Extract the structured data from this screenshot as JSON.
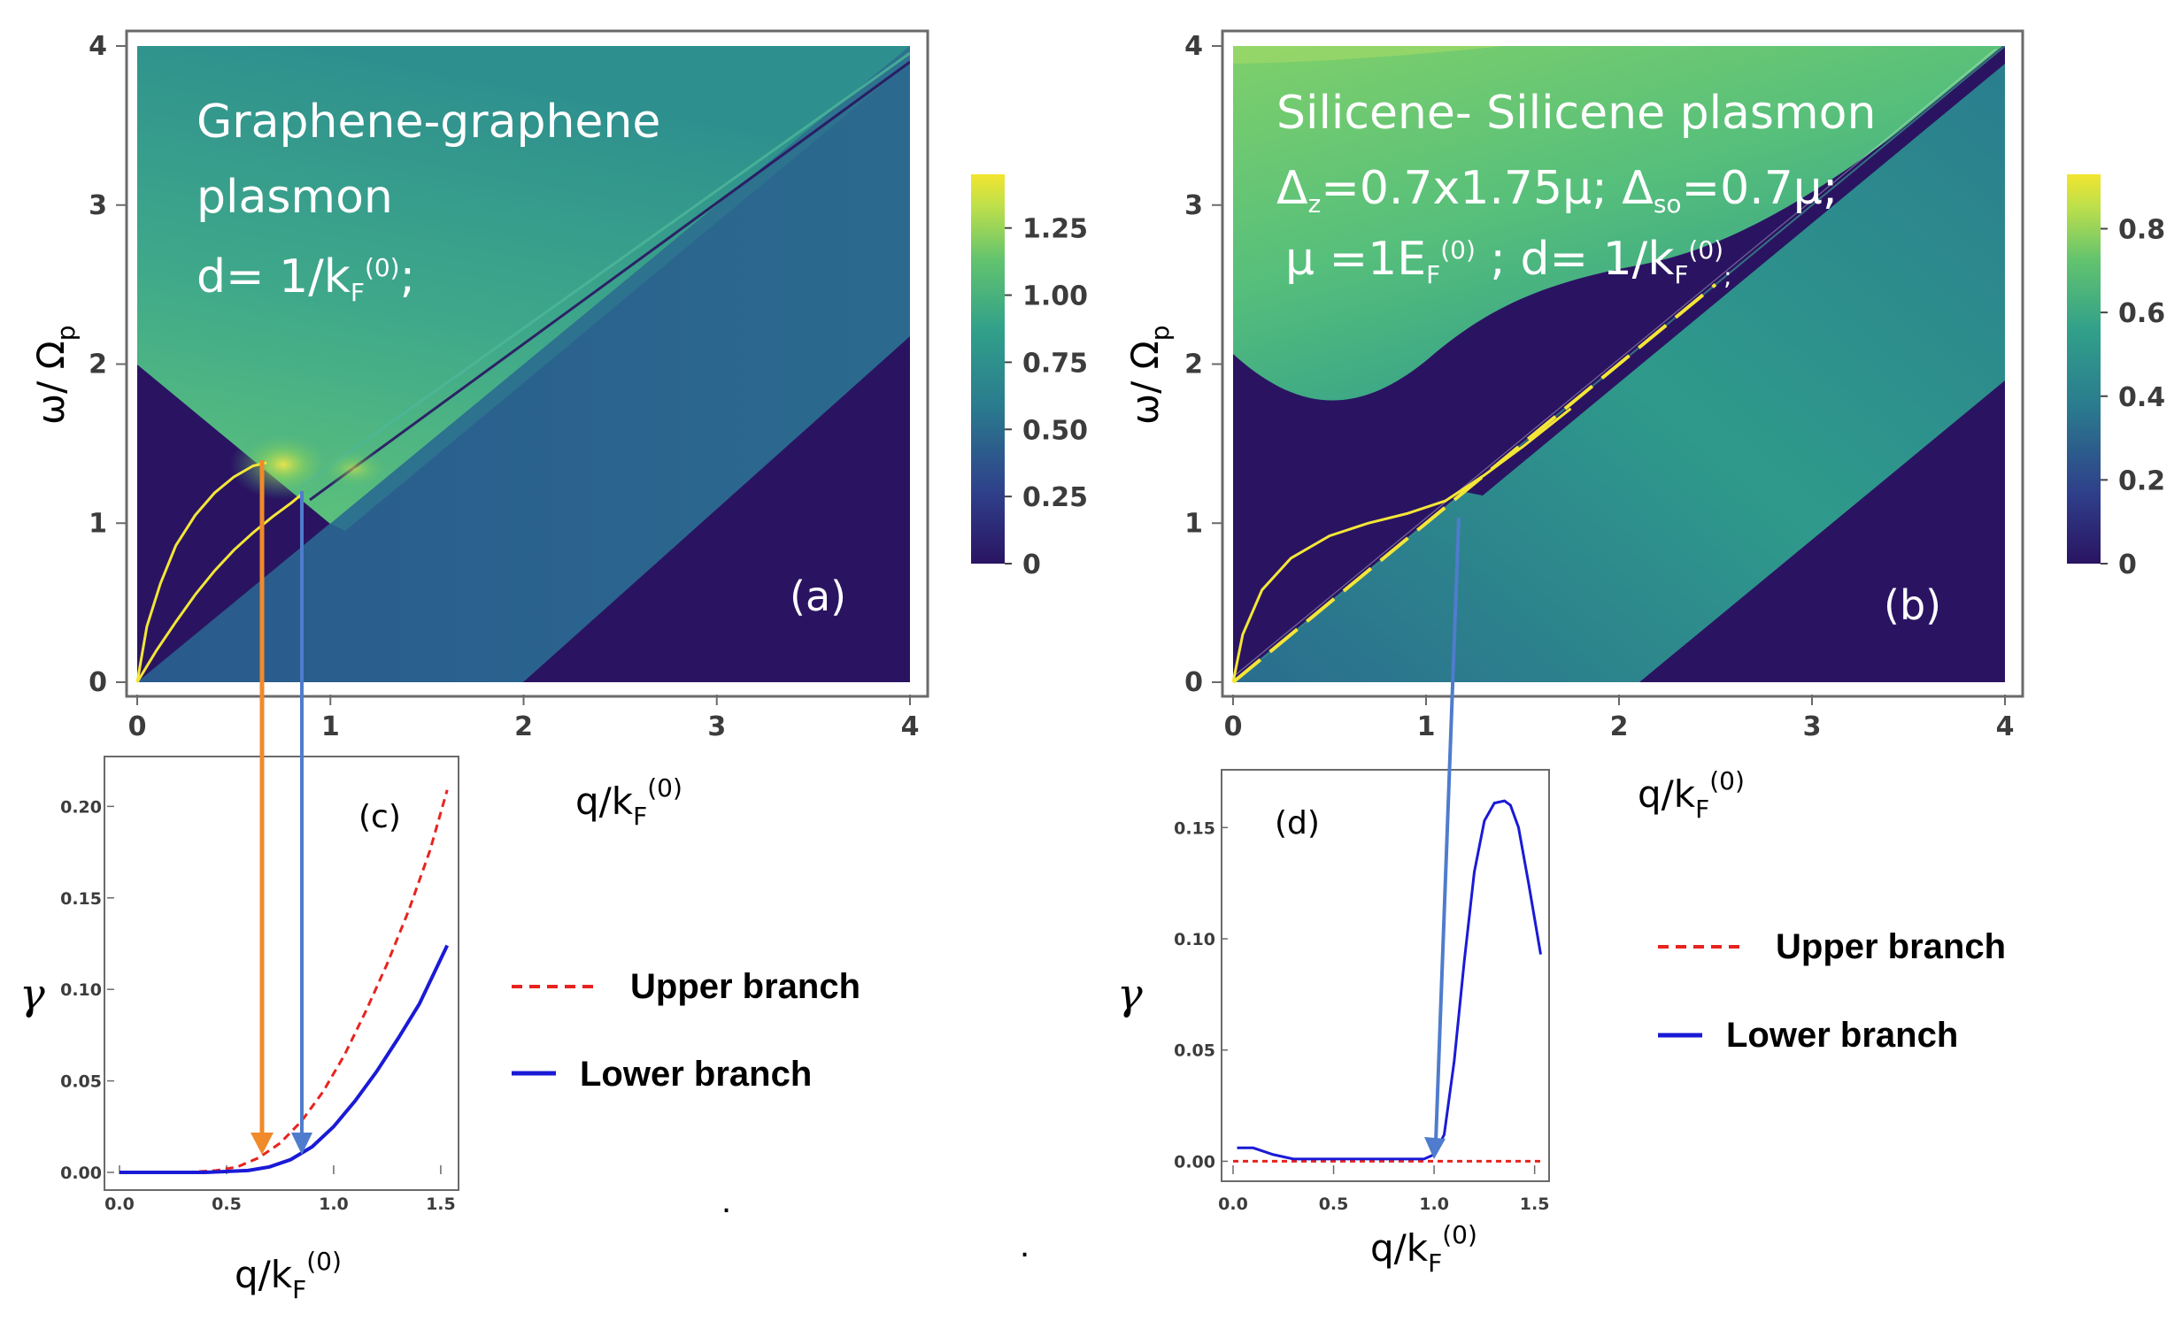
{
  "colors": {
    "panel_bg": "#3b1f6b",
    "dark_region": "#2a1462",
    "teal": "#2b8c8c",
    "green": "#4fbf7a",
    "yellow": "#f2e33a",
    "upper_branch": "#e8231e",
    "lower_branch": "#1a1ad6",
    "arrow_orange": "#f08a2a",
    "arrow_blue": "#4f7ccc"
  },
  "chart_data": [
    {
      "id": "a",
      "type": "heatmap",
      "panel_label": "(a)",
      "annotation_lines": [
        "Graphene-graphene",
        "plasmon",
        "d= 1/k_F^(0);"
      ],
      "xlabel": "q/k_F^(0)",
      "ylabel": "ω/ Ω_p",
      "xlim": [
        0,
        4
      ],
      "ylim": [
        0,
        4
      ],
      "xticks": [
        "0",
        "1",
        "2",
        "3",
        "4"
      ],
      "yticks": [
        "0",
        "1",
        "2",
        "3",
        "4"
      ],
      "colorbar_ticks": [
        "0",
        "0.25",
        "0.50",
        "0.75",
        "1.00",
        "1.25"
      ],
      "colorbar_max": 1.45,
      "dispersion_curves": [
        {
          "name": "upper",
          "x": [
            0,
            0.05,
            0.12,
            0.2,
            0.3,
            0.4,
            0.5,
            0.6,
            0.67
          ],
          "y": [
            0,
            0.35,
            0.62,
            0.86,
            1.05,
            1.19,
            1.29,
            1.36,
            1.38
          ]
        },
        {
          "name": "lower",
          "x": [
            0,
            0.1,
            0.2,
            0.3,
            0.4,
            0.5,
            0.6,
            0.7,
            0.8,
            0.85
          ],
          "y": [
            0,
            0.2,
            0.38,
            0.55,
            0.7,
            0.83,
            0.94,
            1.04,
            1.13,
            1.18
          ]
        }
      ]
    },
    {
      "id": "b",
      "type": "heatmap",
      "panel_label": "(b)",
      "annotation_lines": [
        "Silicene- Silicene plasmon",
        "Δz=0.7x1.75μ; Δso=0.7μ;",
        "μ =1E_F^(0) ; d= 1/k_F^(0);"
      ],
      "xlabel": "q/k_F^(0)",
      "ylabel": "ω/ Ω_p",
      "xlim": [
        0,
        4
      ],
      "ylim": [
        0,
        4
      ],
      "xticks": [
        "0",
        "1",
        "2",
        "3",
        "4"
      ],
      "yticks": [
        "0",
        "1",
        "2",
        "3",
        "4"
      ],
      "colorbar_ticks": [
        "0",
        "0.2",
        "0.4",
        "0.6",
        "0.8"
      ],
      "colorbar_max": 0.93,
      "dispersion_curves": [
        {
          "name": "upper",
          "x": [
            0,
            0.05,
            0.15,
            0.3,
            0.5,
            0.7,
            0.9,
            1.1,
            1.3,
            1.5,
            1.75
          ],
          "y": [
            0,
            0.3,
            0.58,
            0.78,
            0.92,
            1.0,
            1.06,
            1.14,
            1.3,
            1.48,
            1.72
          ]
        },
        {
          "name": "lower",
          "x": [
            0,
            0.3,
            0.6,
            0.9,
            1.0,
            1.2,
            1.5,
            2.0,
            2.5
          ],
          "y": [
            0,
            0.3,
            0.6,
            0.9,
            1.0,
            1.2,
            1.5,
            2.0,
            2.5
          ]
        }
      ]
    },
    {
      "id": "c",
      "type": "line",
      "panel_label": "(c)",
      "xlabel": "q/k_F^(0)",
      "ylabel": "γ",
      "xlim": [
        0,
        1.55
      ],
      "ylim": [
        0,
        0.22
      ],
      "xticks": [
        "0.0",
        "0.5",
        "1.0",
        "1.5"
      ],
      "yticks": [
        "0.00",
        "0.05",
        "0.10",
        "0.15",
        "0.20"
      ],
      "series": [
        {
          "name": "Upper branch",
          "style": "dashed",
          "x": [
            0,
            0.3,
            0.45,
            0.55,
            0.65,
            0.75,
            0.85,
            0.95,
            1.05,
            1.15,
            1.25,
            1.35,
            1.45,
            1.53
          ],
          "y": [
            0,
            0,
            0.001,
            0.003,
            0.008,
            0.016,
            0.028,
            0.044,
            0.064,
            0.088,
            0.114,
            0.143,
            0.176,
            0.209
          ]
        },
        {
          "name": "Lower branch",
          "style": "solid",
          "x": [
            0,
            0.4,
            0.6,
            0.7,
            0.8,
            0.9,
            1.0,
            1.1,
            1.2,
            1.3,
            1.4,
            1.53
          ],
          "y": [
            0,
            0,
            0.001,
            0.003,
            0.007,
            0.014,
            0.025,
            0.039,
            0.055,
            0.073,
            0.092,
            0.124
          ]
        }
      ]
    },
    {
      "id": "d",
      "type": "line",
      "panel_label": "(d)",
      "xlabel": "q/k_F^(0)",
      "ylabel": "γ",
      "xlim": [
        0,
        1.55
      ],
      "ylim": [
        -0.005,
        0.17
      ],
      "xticks": [
        "0.0",
        "0.5",
        "1.0",
        "1.5"
      ],
      "yticks": [
        "0.00",
        "0.05",
        "0.10",
        "0.15"
      ],
      "series": [
        {
          "name": "Upper branch",
          "style": "dashed",
          "x": [
            0,
            1.53
          ],
          "y": [
            0,
            0
          ]
        },
        {
          "name": "Lower branch",
          "style": "solid",
          "x": [
            0.02,
            0.1,
            0.2,
            0.3,
            0.5,
            0.8,
            0.95,
            1.0,
            1.05,
            1.1,
            1.15,
            1.2,
            1.25,
            1.3,
            1.35,
            1.38,
            1.42,
            1.47,
            1.53
          ],
          "y": [
            0.006,
            0.006,
            0.003,
            0.001,
            0.001,
            0.001,
            0.001,
            0.003,
            0.012,
            0.045,
            0.09,
            0.13,
            0.153,
            0.161,
            0.162,
            0.16,
            0.15,
            0.125,
            0.093
          ]
        }
      ]
    }
  ],
  "legend": {
    "upper": "Upper branch",
    "lower": "Lower branch"
  },
  "stray_marks": [
    ".",
    "."
  ]
}
